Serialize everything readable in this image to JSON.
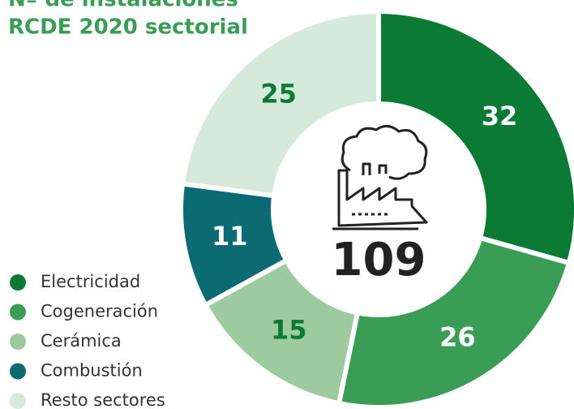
{
  "chart_data": {
    "type": "donut",
    "title": [
      "Nº de instalaciones",
      "RCDE 2020 sectorial"
    ],
    "categories": [
      "Electricidad",
      "Cogeneración",
      "Cerámica",
      "Combustión",
      "Resto sectores"
    ],
    "values": [
      32,
      26,
      15,
      11,
      25
    ],
    "colors": [
      "#0b7a35",
      "#3a9d55",
      "#9dcb9f",
      "#0c6a72",
      "#d5eadb"
    ],
    "total": 109,
    "legend": "bottom-left"
  }
}
